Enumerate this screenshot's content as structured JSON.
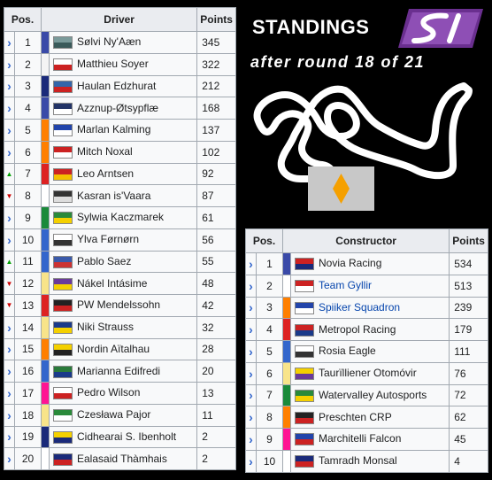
{
  "header": {
    "title": "STANDINGS",
    "subtitle": "after round 18 of 21",
    "logo_text": "SI"
  },
  "colors": {
    "arrow_neutral": "#3366cc",
    "arrow_up": "#00a000",
    "arrow_down": "#cc0000",
    "background": "#000000",
    "logo_purple": "#7b3fa0",
    "sign_diamond": "#f5a000"
  },
  "drivers": {
    "headers": {
      "pos": "Pos.",
      "driver": "Driver",
      "points": "Points"
    },
    "rows": [
      {
        "trend": "neutral",
        "pos": "1",
        "color": "#3a4aa8",
        "flag": [
          "#7a9a9a",
          "#3a5a5a"
        ],
        "name": "Sølvi Ny'Aæn",
        "points": "345",
        "link": false
      },
      {
        "trend": "neutral",
        "pos": "2",
        "color": "#f4f4f4",
        "flag": [
          "#ffffff",
          "#cc2222"
        ],
        "name": "Matthieu Soyer",
        "points": "322",
        "link": false
      },
      {
        "trend": "neutral",
        "pos": "3",
        "color": "#1a2a7a",
        "flag": [
          "#3366aa",
          "#cc2222"
        ],
        "name": "Haulan Edzhurat",
        "points": "212",
        "link": false
      },
      {
        "trend": "neutral",
        "pos": "4",
        "color": "#3a4aa8",
        "flag": [
          "#223366",
          "#ffffff"
        ],
        "name": "Azznup-Øtsypflæ",
        "points": "168",
        "link": false
      },
      {
        "trend": "neutral",
        "pos": "5",
        "color": "#ff7f00",
        "flag": [
          "#2244aa",
          "#ffffff"
        ],
        "name": "Marlan Kalming",
        "points": "137",
        "link": false
      },
      {
        "trend": "neutral",
        "pos": "6",
        "color": "#ff7f00",
        "flag": [
          "#cc2222",
          "#ffffff"
        ],
        "name": "Mitch Noxal",
        "points": "102",
        "link": false
      },
      {
        "trend": "up",
        "pos": "7",
        "color": "#dd2222",
        "flag": [
          "#cc2222",
          "#f4c000"
        ],
        "name": "Leo Arntsen",
        "points": "92",
        "link": false
      },
      {
        "trend": "down",
        "pos": "8",
        "color": "#ffffff",
        "flag": [
          "#333333",
          "#dddddd"
        ],
        "name": "Kasran is'Vaara",
        "points": "87",
        "link": false
      },
      {
        "trend": "neutral",
        "pos": "9",
        "color": "#1a8a3a",
        "flag": [
          "#2a8a3a",
          "#f4d000"
        ],
        "name": "Sylwia Kaczmarek",
        "points": "61",
        "link": false
      },
      {
        "trend": "neutral",
        "pos": "10",
        "color": "#3366cc",
        "flag": [
          "#ffffff",
          "#333333"
        ],
        "name": "Ylva Førnørn",
        "points": "56",
        "link": false
      },
      {
        "trend": "up",
        "pos": "11",
        "color": "#3366cc",
        "flag": [
          "#3a5aaa",
          "#cc3333"
        ],
        "name": "Pablo Saez",
        "points": "55",
        "link": false
      },
      {
        "trend": "down",
        "pos": "12",
        "color": "#f8e48a",
        "flag": [
          "#6a3a9a",
          "#f4d000"
        ],
        "name": "Nákel Intásime",
        "points": "48",
        "link": false
      },
      {
        "trend": "down",
        "pos": "13",
        "color": "#dd2222",
        "flag": [
          "#222222",
          "#cc2222"
        ],
        "name": "PW Mendelssohn",
        "points": "42",
        "link": false
      },
      {
        "trend": "neutral",
        "pos": "14",
        "color": "#f8e48a",
        "flag": [
          "#1a3a8a",
          "#f4d000"
        ],
        "name": "Niki Strauss",
        "points": "32",
        "link": false
      },
      {
        "trend": "neutral",
        "pos": "15",
        "color": "#ff7f00",
        "flag": [
          "#f4d000",
          "#222222"
        ],
        "name": "Nordin Aïtalhau",
        "points": "28",
        "link": false
      },
      {
        "trend": "neutral",
        "pos": "16",
        "color": "#3366cc",
        "flag": [
          "#2a7a3a",
          "#1a3a8a"
        ],
        "name": "Marianna Edifredi",
        "points": "20",
        "link": false
      },
      {
        "trend": "neutral",
        "pos": "17",
        "color": "#ff1493",
        "flag": [
          "#ffffff",
          "#cc2222"
        ],
        "name": "Pedro Wilson",
        "points": "13",
        "link": false
      },
      {
        "trend": "neutral",
        "pos": "18",
        "color": "#f8e48a",
        "flag": [
          "#2a8a3a",
          "#ffffff"
        ],
        "name": "Czesława Pajor",
        "points": "11",
        "link": false
      },
      {
        "trend": "neutral",
        "pos": "19",
        "color": "#1a2a7a",
        "flag": [
          "#f4d000",
          "#1a2a7a"
        ],
        "name": "Cidhearai S. Ibenholt",
        "points": "2",
        "link": false
      },
      {
        "trend": "neutral",
        "pos": "20",
        "color": "#ffffff",
        "flag": [
          "#1a2a7a",
          "#cc2222"
        ],
        "name": "Ealasaid Thàmhais",
        "points": "2",
        "link": false
      }
    ]
  },
  "constructors": {
    "headers": {
      "pos": "Pos.",
      "constructor": "Constructor",
      "points": "Points"
    },
    "rows": [
      {
        "trend": "neutral",
        "pos": "1",
        "color": "#3a4aa8",
        "flag": [
          "#cc2222",
          "#1a2a7a"
        ],
        "name": "Novia Racing",
        "points": "534",
        "link": false
      },
      {
        "trend": "neutral",
        "pos": "2",
        "color": "#ffffff",
        "flag": [
          "#cc2222",
          "#ffffff"
        ],
        "name": "Team Gyllir",
        "points": "513",
        "link": true
      },
      {
        "trend": "neutral",
        "pos": "3",
        "color": "#ff7f00",
        "flag": [
          "#2244aa",
          "#ffffff"
        ],
        "name": "Spiiker Squadron",
        "points": "239",
        "link": true
      },
      {
        "trend": "neutral",
        "pos": "4",
        "color": "#dd2222",
        "flag": [
          "#cc2222",
          "#1a3a8a"
        ],
        "name": "Metropol Racing",
        "points": "179",
        "link": false
      },
      {
        "trend": "neutral",
        "pos": "5",
        "color": "#3366cc",
        "flag": [
          "#ffffff",
          "#333333"
        ],
        "name": "Rosia Eagle",
        "points": "111",
        "link": false
      },
      {
        "trend": "neutral",
        "pos": "6",
        "color": "#f8e48a",
        "flag": [
          "#f4d000",
          "#6a3a9a"
        ],
        "name": "Taurïlliener Otomóvir",
        "points": "76",
        "link": false
      },
      {
        "trend": "neutral",
        "pos": "7",
        "color": "#1a8a3a",
        "flag": [
          "#2a8a3a",
          "#f4d000"
        ],
        "name": "Watervalley Autosports",
        "points": "72",
        "link": false
      },
      {
        "trend": "neutral",
        "pos": "8",
        "color": "#ff7f00",
        "flag": [
          "#222222",
          "#cc2222"
        ],
        "name": "Preschten CRP",
        "points": "62",
        "link": false
      },
      {
        "trend": "neutral",
        "pos": "9",
        "color": "#ff1493",
        "flag": [
          "#2244aa",
          "#cc2222"
        ],
        "name": "Marchitelli Falcon",
        "points": "45",
        "link": false
      },
      {
        "trend": "neutral",
        "pos": "10",
        "color": "#ffffff",
        "flag": [
          "#1a2a7a",
          "#cc2222"
        ],
        "name": "Tamradh Monsal",
        "points": "4",
        "link": false
      }
    ]
  }
}
